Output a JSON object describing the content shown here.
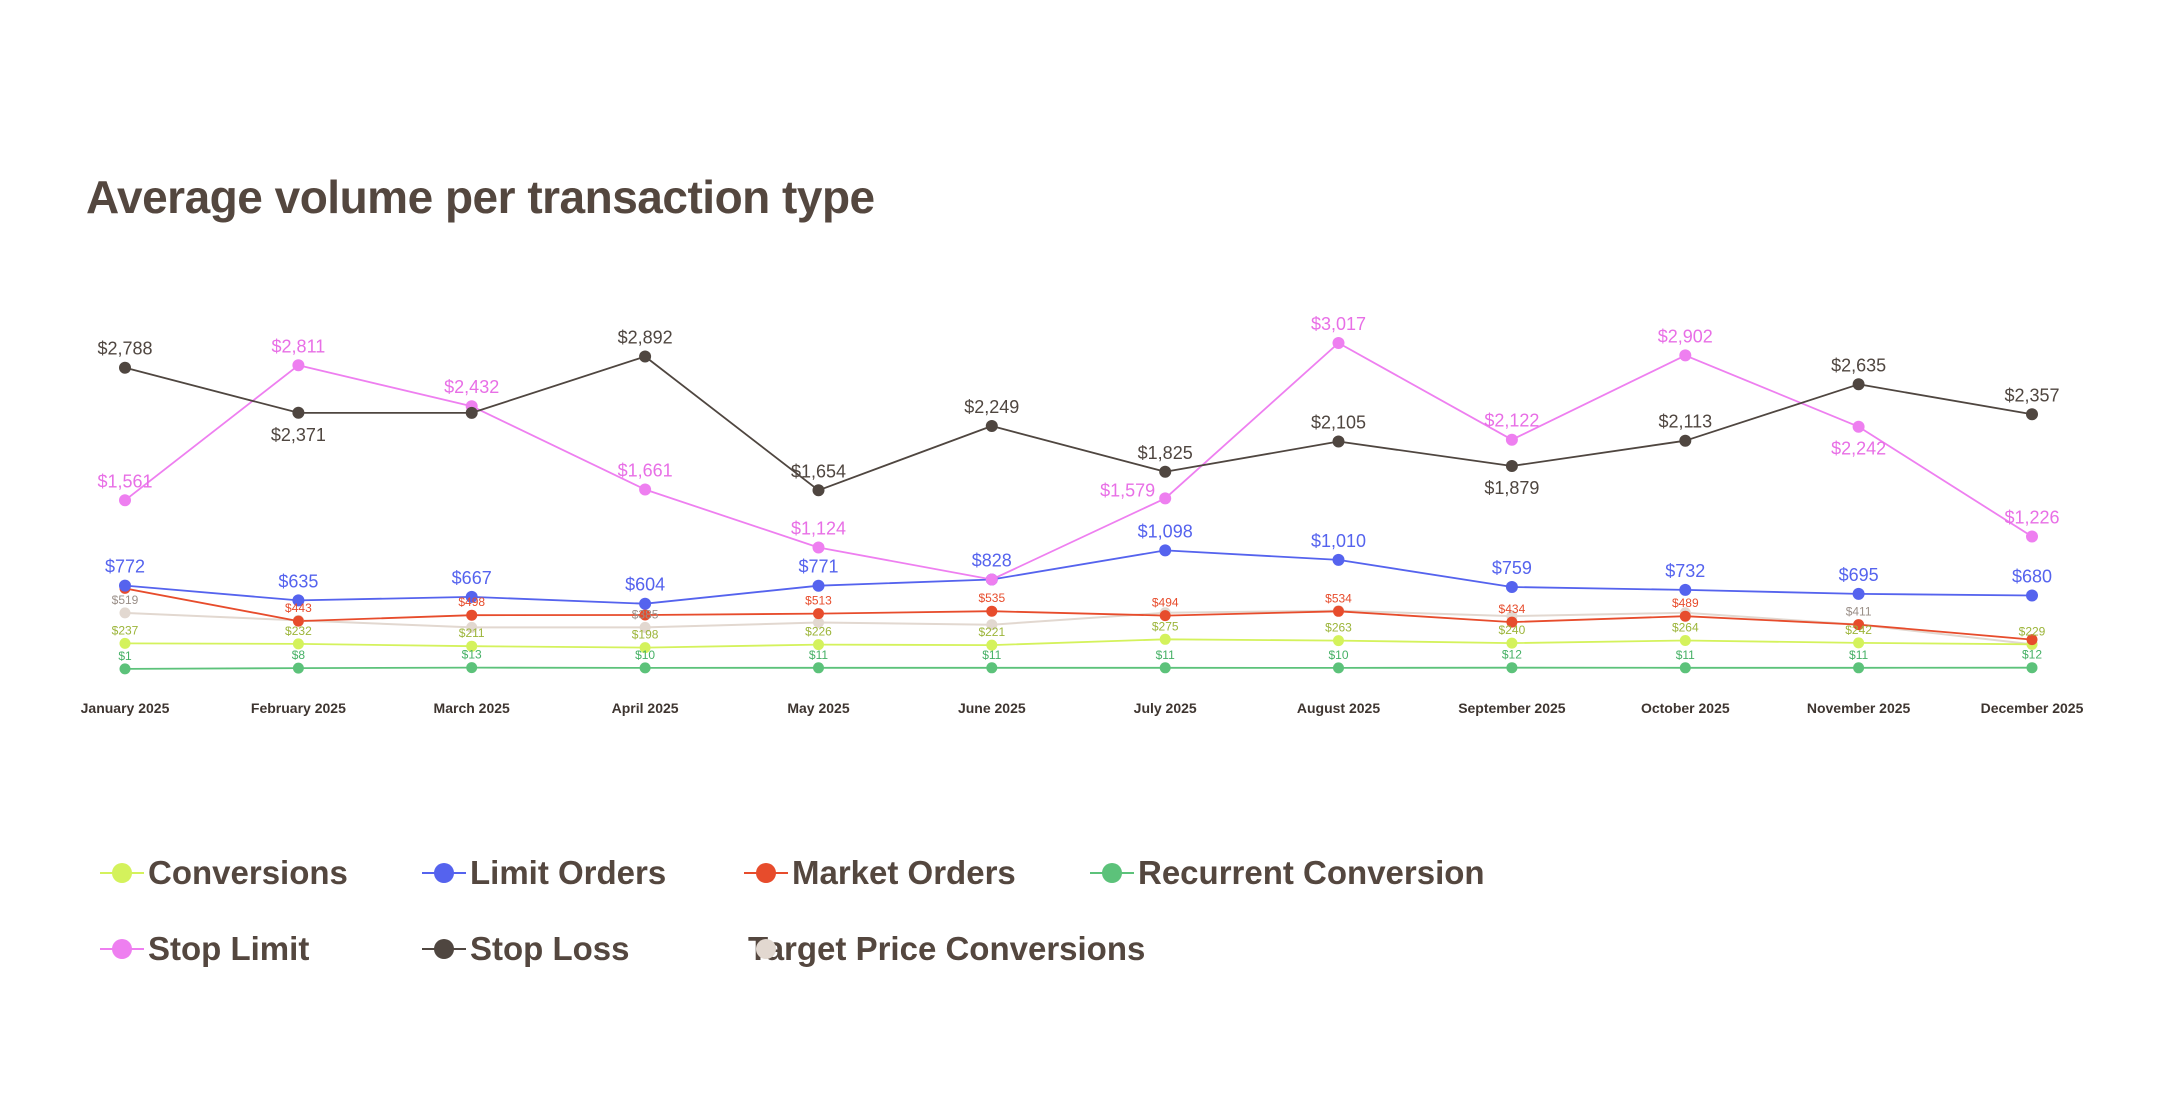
{
  "chart_data": {
    "type": "line",
    "title": "Average volume per transaction type",
    "xlabel": "",
    "ylabel": "",
    "categories": [
      "January 2025",
      "February 2025",
      "March 2025",
      "April 2025",
      "May 2025",
      "June 2025",
      "July 2025",
      "August 2025",
      "September 2025",
      "October 2025",
      "November 2025",
      "December 2025"
    ],
    "grid": false,
    "legend_position": "bottom-left",
    "series": [
      {
        "name": "Conversions",
        "color": "#d4f25c",
        "label_color": "#9cb53a",
        "values": [
          237,
          232,
          211,
          198,
          226,
          221,
          275,
          263,
          240,
          264,
          242,
          229
        ],
        "labels": [
          "$237",
          "$232",
          "$211",
          "$198",
          "$226",
          "$221",
          "$275",
          "$263",
          "$240",
          "$264",
          "$242",
          "$229"
        ]
      },
      {
        "name": "Limit Orders",
        "color": "#5563ee",
        "label_color": "#5563ee",
        "values": [
          772,
          635,
          667,
          604,
          771,
          828,
          1098,
          1010,
          759,
          732,
          695,
          680
        ],
        "labels": [
          "$772",
          "$635",
          "$667",
          "$604",
          "$771",
          "$828",
          "$1,098",
          "$1,010",
          "$759",
          "$732",
          "$695",
          "$680"
        ]
      },
      {
        "name": "Market Orders",
        "color": "#e74c2c",
        "label_color": "#e74c2c",
        "values": [
          746,
          443,
          498,
          500,
          513,
          535,
          494,
          534,
          434,
          489,
          411,
          272
        ],
        "labels": [
          "",
          "$443",
          "$498",
          "",
          "$513",
          "$535",
          "$494",
          "$534",
          "$434",
          "$489",
          "",
          ""
        ]
      },
      {
        "name": "Recurrent Conversion",
        "color": "#5cc27a",
        "label_color": "#45b065",
        "values": [
          1,
          8,
          13,
          10,
          11,
          11,
          11,
          10,
          12,
          11,
          11,
          12
        ],
        "labels": [
          "$1",
          "$8",
          "$13",
          "$10",
          "$11",
          "$11",
          "$11",
          "$10",
          "$12",
          "$11",
          "$11",
          "$12"
        ]
      },
      {
        "name": "Stop Limit",
        "color": "#ee7ff0",
        "label_color": "#e86fe6",
        "values": [
          1561,
          2811,
          2432,
          1661,
          1124,
          828,
          1579,
          3017,
          2122,
          2902,
          2242,
          1226
        ],
        "labels": [
          "$1,561",
          "$2,811",
          "$2,432",
          "$1,661",
          "$1,124",
          "",
          "$1,579",
          "$3,017",
          "$2,122",
          "$2,902",
          "$2,242",
          "$1,226"
        ]
      },
      {
        "name": "Stop Loss",
        "color": "#4f4640",
        "label_color": "#4f4640",
        "values": [
          2788,
          2371,
          2370,
          2892,
          1654,
          2249,
          1825,
          2105,
          1879,
          2113,
          2635,
          2357
        ],
        "labels": [
          "$2,788",
          "$2,371",
          "",
          "$2,892",
          "$1,654",
          "$2,249",
          "$1,825",
          "$2,105",
          "$1,879",
          "$2,113",
          "$2,635",
          "$2,357"
        ]
      },
      {
        "name": "Target Price Conversions",
        "color": "#e2d8d0",
        "label_color": "#9a8f88",
        "values": [
          519,
          450,
          385,
          385,
          430,
          410,
          520,
          540,
          490,
          520,
          411,
          229
        ],
        "labels": [
          "$519",
          "",
          "",
          "$385",
          "",
          "",
          "",
          "",
          "",
          "",
          "$411",
          ""
        ]
      }
    ]
  }
}
